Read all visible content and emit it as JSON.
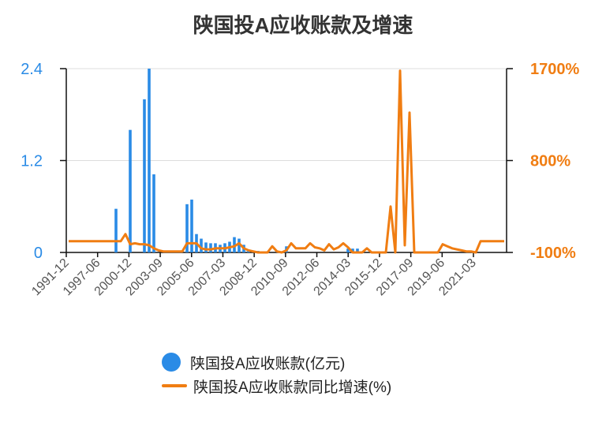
{
  "chart_data": {
    "type": "bar+line",
    "title": "陕国投A应收账款及增速",
    "colors": {
      "bar": "#2a8be6",
      "line": "#f07d12",
      "left_axis": "#2a8be6",
      "right_axis": "#f07d12"
    },
    "left_axis": {
      "ticks": [
        "0",
        "1.2",
        "2.4"
      ],
      "range": [
        0,
        2.4
      ]
    },
    "right_axis": {
      "ticks": [
        "-100%",
        "800%",
        "1700%"
      ],
      "range": [
        -100,
        1700
      ]
    },
    "x_tick_labels": [
      "1991-12",
      "1997-06",
      "2000-12",
      "2003-09",
      "2005-06",
      "2007-03",
      "2008-12",
      "2010-09",
      "2012-06",
      "2014-03",
      "2015-12",
      "2017-09",
      "2019-06",
      "2021-03"
    ],
    "n_periods": 93,
    "grid": true,
    "legend_position": "bottom",
    "series": [
      {
        "name": "陕国投A应收账款(亿元)",
        "type": "bar",
        "axis": "left",
        "values": [
          0,
          0,
          0,
          0,
          0,
          0,
          0,
          0,
          0,
          0,
          0.57,
          0,
          0,
          1.6,
          0,
          0,
          2.0,
          2.4,
          1.02,
          0,
          0,
          0,
          0,
          0,
          0,
          0.63,
          0.69,
          0.24,
          0.18,
          0.13,
          0.12,
          0.12,
          0.1,
          0.12,
          0.14,
          0.2,
          0.18,
          0.1,
          0.03,
          0.02,
          0.02,
          0,
          0,
          0,
          0,
          0,
          0.08,
          0,
          0,
          0,
          0,
          0,
          0,
          0,
          0,
          0,
          0,
          0,
          0,
          0.05,
          0.05,
          0.05,
          0,
          0,
          0,
          0,
          0,
          0,
          0,
          0,
          0,
          0,
          0,
          0,
          0,
          0,
          0,
          0,
          0,
          0,
          0,
          0,
          0,
          0,
          0,
          0,
          0,
          0,
          0,
          0,
          0,
          0,
          0
        ]
      },
      {
        "name": "陕国投A应收账款同比增速(%)",
        "type": "line",
        "axis": "right",
        "values": [
          10,
          10,
          10,
          10,
          10,
          10,
          10,
          10,
          10,
          10,
          10,
          10,
          80,
          -20,
          -10,
          -20,
          -20,
          -30,
          -60,
          -80,
          -90,
          -90,
          -90,
          -90,
          -90,
          -10,
          -10,
          -10,
          -60,
          -70,
          -70,
          -60,
          -60,
          -60,
          -50,
          -40,
          -10,
          -60,
          -80,
          -90,
          -100,
          -100,
          -100,
          -40,
          -90,
          -100,
          -80,
          -10,
          -60,
          -60,
          -60,
          -10,
          -50,
          -60,
          -80,
          -20,
          -70,
          -50,
          -10,
          -50,
          -100,
          -100,
          -100,
          -60,
          -100,
          -100,
          -100,
          -100,
          350,
          -100,
          1680,
          -30,
          1270,
          -100,
          -100,
          -100,
          -100,
          -100,
          -100,
          -20,
          -40,
          -60,
          -70,
          -80,
          -90,
          -90,
          -100,
          10,
          10,
          10,
          10,
          10,
          10
        ]
      }
    ]
  }
}
